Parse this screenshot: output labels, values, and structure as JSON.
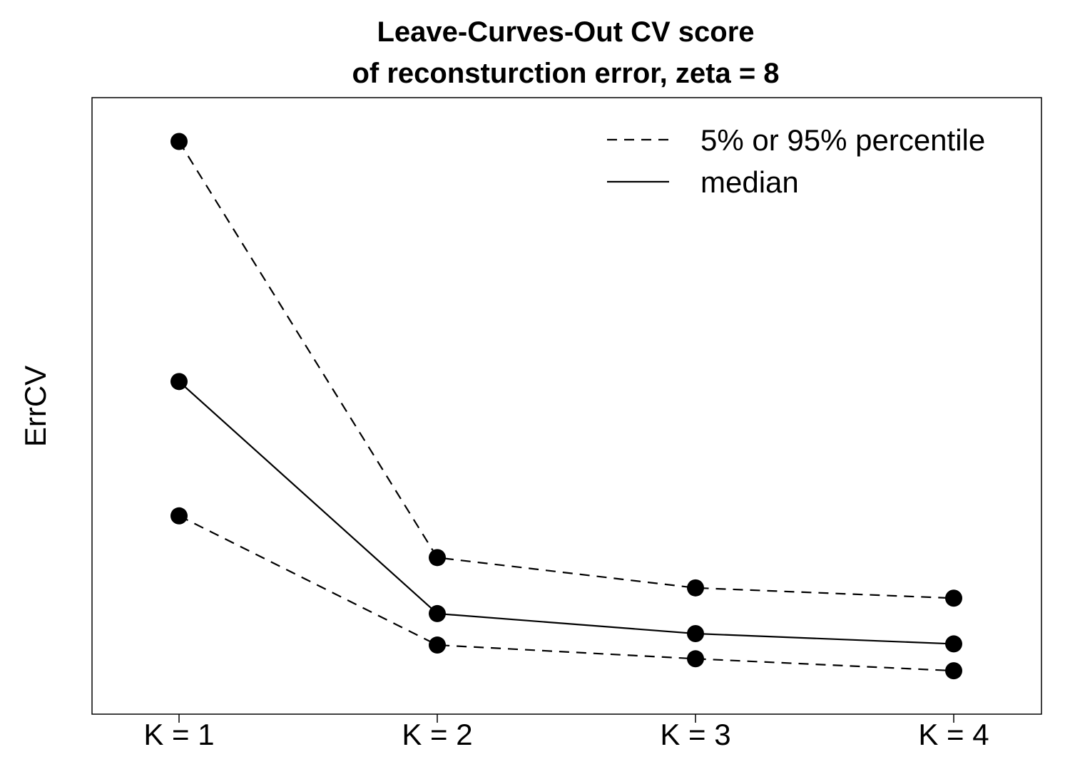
{
  "chart_data": {
    "type": "line",
    "title": [
      "Leave-Curves-Out CV score",
      "of reconsturction error, zeta = 8"
    ],
    "xlabel": "",
    "ylabel": "ErrCV",
    "categories": [
      "K = 1",
      "K = 2",
      "K = 3",
      "K = 4"
    ],
    "x": [
      1,
      2,
      3,
      4
    ],
    "ylim": [
      0,
      1
    ],
    "grid": false,
    "legend": {
      "placement": "top-right",
      "entries": [
        {
          "label": "5% or 95% percentile",
          "style": "dashed"
        },
        {
          "label": "median",
          "style": "solid"
        }
      ]
    },
    "series": [
      {
        "name": "95% percentile",
        "style": "dashed",
        "values": [
          0.962,
          0.234,
          0.181,
          0.163
        ]
      },
      {
        "name": "median",
        "style": "solid",
        "values": [
          0.542,
          0.136,
          0.101,
          0.083
        ]
      },
      {
        "name": "5% percentile",
        "style": "dashed",
        "values": [
          0.307,
          0.081,
          0.057,
          0.036
        ]
      }
    ]
  }
}
